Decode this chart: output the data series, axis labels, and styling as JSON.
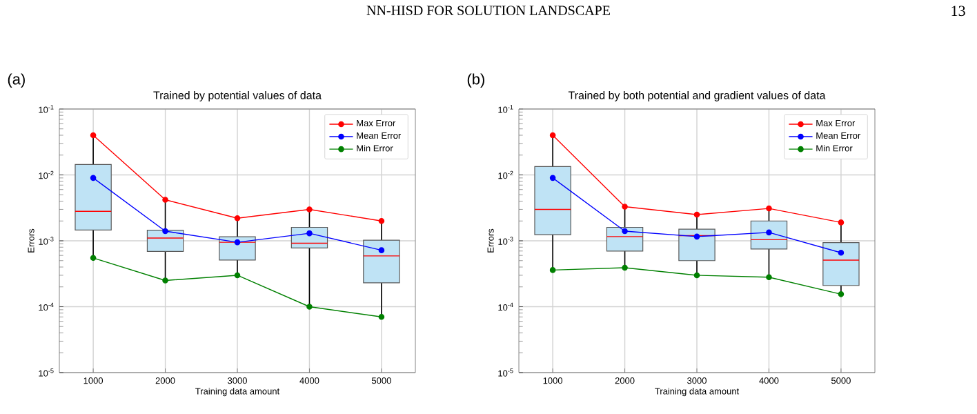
{
  "chart_data": [
    {
      "type": "line",
      "title": "Trained by potential values of data",
      "xlabel": "Training data amount",
      "ylabel": "Errors",
      "annotations": [
        "(a)",
        "NN-HISD FOR SOLUTION LANDSCAPE",
        "13"
      ],
      "categories": [
        "1000",
        "2000",
        "3000",
        "4000",
        "5000"
      ],
      "log": "y",
      "ylim": [
        1e-05,
        0.1
      ],
      "yticks": [
        {
          "value": 1e-05,
          "label": "10$^{-5}$"
        },
        {
          "value": 0.0001,
          "label": "10$^{-4}$"
        },
        {
          "value": 0.001,
          "label": "10$^{-3}$"
        },
        {
          "value": 0.01,
          "label": "10$^{-2}$"
        },
        {
          "value": 0.1,
          "label": "10$^{-1}$"
        }
      ],
      "grid": true,
      "legend": "top right",
      "marker": "circle",
      "series": [
        {
          "type": "box",
          "color": "#bfe3f5",
          "boxes": [
            {
              "low": 0.00055,
              "q1": 0.00146,
              "median": 0.0028,
              "q3": 0.0144,
              "high": 0.04
            },
            {
              "low": 0.00025,
              "q1": 0.00069,
              "median": 0.0011,
              "q3": 0.00145,
              "high": 0.0042
            },
            {
              "low": 0.0003,
              "q1": 0.00051,
              "median": 0.00095,
              "q3": 0.00115,
              "high": 0.0022
            },
            {
              "low": 0.0001,
              "q1": 0.00078,
              "median": 0.00092,
              "q3": 0.0016,
              "high": 0.003
            },
            {
              "low": 7e-05,
              "q1": 0.00023,
              "median": 0.00059,
              "q3": 0.00102,
              "high": 0.002
            }
          ]
        },
        {
          "type": "line",
          "name": "Max Error",
          "color": "#ff0000",
          "values": [
            0.04,
            0.0042,
            0.0022,
            0.003,
            0.002
          ]
        },
        {
          "type": "line",
          "name": "Mean Error",
          "color": "#0000ff",
          "values": [
            0.009,
            0.0014,
            0.00095,
            0.0013,
            0.00072
          ]
        },
        {
          "type": "line",
          "name": "Min Error",
          "color": "#008000",
          "values": [
            0.00055,
            0.00025,
            0.0003,
            0.0001,
            7e-05
          ]
        }
      ]
    },
    {
      "type": "line",
      "title": "Trained by both potential and gradient values of data",
      "xlabel": "Training data amount",
      "ylabel": "Errors",
      "annotations": [
        "(b)"
      ],
      "categories": [
        "1000",
        "2000",
        "3000",
        "4000",
        "5000"
      ],
      "log": "y",
      "ylim": [
        1e-05,
        0.1
      ],
      "yticks": [
        {
          "value": 1e-05,
          "label": "10$^{-5}$"
        },
        {
          "value": 0.0001,
          "label": "10$^{-4}$"
        },
        {
          "value": 0.001,
          "label": "10$^{-3}$"
        },
        {
          "value": 0.01,
          "label": "10$^{-2}$"
        },
        {
          "value": 0.1,
          "label": "10$^{-1}$"
        }
      ],
      "grid": true,
      "legend": "top right",
      "marker": "circle",
      "series": [
        {
          "type": "box",
          "color": "#bfe3f5",
          "boxes": [
            {
              "low": 0.00036,
              "q1": 0.00124,
              "median": 0.003,
              "q3": 0.0134,
              "high": 0.04
            },
            {
              "low": 0.00039,
              "q1": 0.0007,
              "median": 0.00116,
              "q3": 0.0016,
              "high": 0.0033
            },
            {
              "low": 0.0003,
              "q1": 0.0005,
              "median": 0.0012,
              "q3": 0.0015,
              "high": 0.0025
            },
            {
              "low": 0.00028,
              "q1": 0.00075,
              "median": 0.00104,
              "q3": 0.002,
              "high": 0.0031
            },
            {
              "low": 0.000155,
              "q1": 0.00021,
              "median": 0.00051,
              "q3": 0.00094,
              "high": 0.0019
            }
          ]
        },
        {
          "type": "line",
          "name": "Max Error",
          "color": "#ff0000",
          "values": [
            0.04,
            0.0033,
            0.0025,
            0.0031,
            0.0019
          ]
        },
        {
          "type": "line",
          "name": "Mean Error",
          "color": "#0000ff",
          "values": [
            0.009,
            0.0014,
            0.00116,
            0.00134,
            0.00066
          ]
        },
        {
          "type": "line",
          "name": "Min Error",
          "color": "#008000",
          "values": [
            0.00036,
            0.00039,
            0.0003,
            0.00028,
            0.000155
          ]
        }
      ]
    }
  ]
}
